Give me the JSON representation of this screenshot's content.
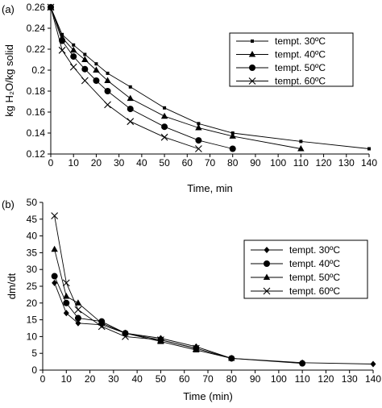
{
  "chart_data": [
    {
      "panel_label": "(a)",
      "type": "line",
      "xlabel": "Time, min",
      "ylabel": "kg H₂O/kg solid",
      "xlim": [
        0,
        140
      ],
      "ylim": [
        0.12,
        0.26
      ],
      "xticks": [
        0,
        10,
        20,
        30,
        40,
        50,
        60,
        70,
        80,
        90,
        100,
        110,
        120,
        130,
        140
      ],
      "yticks": [
        0.12,
        0.14,
        0.16,
        0.18,
        0.2,
        0.22,
        0.24,
        0.26
      ],
      "ytick_labels": [
        "0.12",
        "0.14",
        "0.16",
        "0.18",
        "0.2",
        "0.22",
        "0.24",
        "0.26"
      ],
      "grid": false,
      "legend_position": "top-right",
      "series": [
        {
          "name": "tempt. 30ºC",
          "marker": "small-square",
          "x": [
            0,
            5,
            10,
            15,
            20,
            25,
            35,
            50,
            65,
            80,
            110,
            140
          ],
          "y": [
            0.26,
            0.234,
            0.224,
            0.215,
            0.206,
            0.197,
            0.184,
            0.164,
            0.149,
            0.14,
            0.132,
            0.125
          ]
        },
        {
          "name": "tempt. 40ºC",
          "marker": "triangle",
          "x": [
            0,
            5,
            10,
            15,
            20,
            25,
            35,
            50,
            65,
            80,
            110
          ],
          "y": [
            0.26,
            0.231,
            0.219,
            0.21,
            0.2,
            0.19,
            0.173,
            0.156,
            0.145,
            0.137,
            0.125
          ]
        },
        {
          "name": "tempt. 50ºC",
          "marker": "circle",
          "x": [
            0,
            5,
            10,
            15,
            20,
            25,
            35,
            50,
            65,
            80
          ],
          "y": [
            0.26,
            0.228,
            0.213,
            0.201,
            0.19,
            0.18,
            0.163,
            0.146,
            0.133,
            0.125
          ]
        },
        {
          "name": "tempt. 60ºC",
          "marker": "x",
          "x": [
            0,
            5,
            10,
            15,
            25,
            35,
            50,
            65
          ],
          "y": [
            0.26,
            0.219,
            0.203,
            0.19,
            0.167,
            0.151,
            0.136,
            0.125
          ]
        }
      ]
    },
    {
      "panel_label": "(b)",
      "type": "line",
      "xlabel": "Time (min)",
      "ylabel": "dm/dt",
      "xlim": [
        0,
        140
      ],
      "ylim": [
        0,
        50
      ],
      "xticks": [
        0,
        10,
        20,
        30,
        40,
        50,
        60,
        70,
        80,
        90,
        100,
        110,
        120,
        130,
        140
      ],
      "yticks": [
        0,
        5,
        10,
        15,
        20,
        25,
        30,
        35,
        40,
        45,
        50
      ],
      "ytick_labels": [
        "0",
        "5",
        "10",
        "15",
        "20",
        "25",
        "30",
        "35",
        "40",
        "45",
        "50"
      ],
      "grid": false,
      "legend_position": "right",
      "series": [
        {
          "name": "tempt. 30ºC",
          "marker": "diamond",
          "x": [
            5,
            10,
            15,
            25,
            35,
            50,
            65,
            80,
            110,
            140
          ],
          "y": [
            26,
            17,
            14,
            13.5,
            11,
            9.5,
            7,
            3.5,
            2.2,
            1.8
          ]
        },
        {
          "name": "tempt. 40ºC",
          "marker": "circle",
          "x": [
            5,
            10,
            15,
            25,
            35,
            50,
            65,
            80,
            110
          ],
          "y": [
            28,
            20,
            15.5,
            14.5,
            11,
            9,
            6.5,
            3.5,
            2
          ]
        },
        {
          "name": "tempt. 50ºC",
          "marker": "triangle",
          "x": [
            5,
            10,
            15,
            25,
            35,
            50,
            65,
            80
          ],
          "y": [
            36,
            22,
            20,
            14,
            11,
            8.5,
            6,
            3.5
          ]
        },
        {
          "name": "tempt. 60ºC",
          "marker": "x",
          "x": [
            5,
            10,
            15,
            25,
            35,
            50,
            65
          ],
          "y": [
            46,
            26,
            18,
            13,
            10,
            9,
            6.5
          ]
        }
      ]
    }
  ]
}
